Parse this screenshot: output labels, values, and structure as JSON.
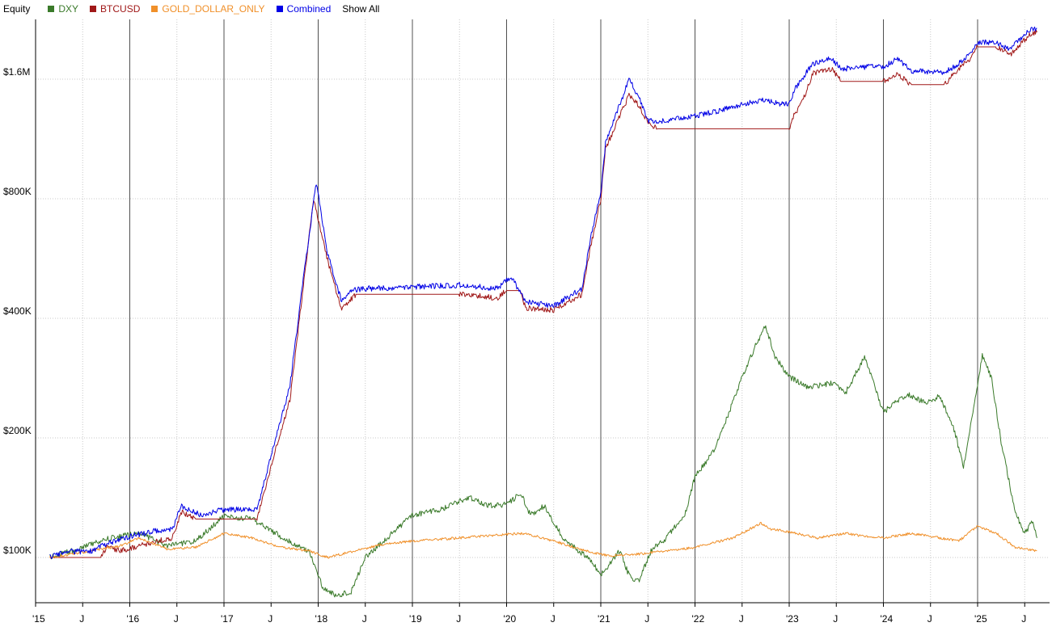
{
  "header": {
    "title": "Equity",
    "show_all_label": "Show All"
  },
  "legend": [
    {
      "name": "DXY",
      "color": "#3a7a2a"
    },
    {
      "name": "BTCUSD",
      "color": "#a01818"
    },
    {
      "name": "GOLD_DOLLAR_ONLY",
      "color": "#f0902a"
    },
    {
      "name": "Combined",
      "color": "#0000e6"
    }
  ],
  "chart_data": {
    "type": "line",
    "y_scale": "log",
    "ylim": [
      75000,
      2350000
    ],
    "xlim": [
      2015.1,
      2025.65
    ],
    "y_ticks": [
      {
        "value": 100000,
        "label": "$100K"
      },
      {
        "value": 200000,
        "label": "$200K"
      },
      {
        "value": 400000,
        "label": "$400K"
      },
      {
        "value": 800000,
        "label": "$800K"
      },
      {
        "value": 1600000,
        "label": "$1.6M"
      }
    ],
    "x_ticks": [
      {
        "value": 2015.0,
        "label": "'15",
        "major": true
      },
      {
        "value": 2015.5,
        "label": "J",
        "major": false
      },
      {
        "value": 2016.0,
        "label": "'16",
        "major": true
      },
      {
        "value": 2016.5,
        "label": "J",
        "major": false
      },
      {
        "value": 2017.0,
        "label": "'17",
        "major": true
      },
      {
        "value": 2017.5,
        "label": "J",
        "major": false
      },
      {
        "value": 2018.0,
        "label": "'18",
        "major": true
      },
      {
        "value": 2018.5,
        "label": "J",
        "major": false
      },
      {
        "value": 2019.0,
        "label": "'19",
        "major": true
      },
      {
        "value": 2019.5,
        "label": "J",
        "major": false
      },
      {
        "value": 2020.0,
        "label": "'20",
        "major": true
      },
      {
        "value": 2020.5,
        "label": "J",
        "major": false
      },
      {
        "value": 2021.0,
        "label": "'21",
        "major": true
      },
      {
        "value": 2021.5,
        "label": "J",
        "major": false
      },
      {
        "value": 2022.0,
        "label": "'22",
        "major": true
      },
      {
        "value": 2022.5,
        "label": "J",
        "major": false
      },
      {
        "value": 2023.0,
        "label": "'23",
        "major": true
      },
      {
        "value": 2023.5,
        "label": "J",
        "major": false
      },
      {
        "value": 2024.0,
        "label": "'24",
        "major": true
      },
      {
        "value": 2024.5,
        "label": "J",
        "major": false
      },
      {
        "value": 2025.0,
        "label": "'25",
        "major": true
      },
      {
        "value": 2025.5,
        "label": "J",
        "major": false
      }
    ],
    "series": [
      {
        "name": "DXY",
        "color": "#3a7a2a",
        "points": [
          [
            2015.15,
            100000
          ],
          [
            2015.45,
            105000
          ],
          [
            2015.8,
            112000
          ],
          [
            2016.1,
            115000
          ],
          [
            2016.4,
            107000
          ],
          [
            2016.7,
            110000
          ],
          [
            2017.0,
            127000
          ],
          [
            2017.3,
            125000
          ],
          [
            2017.6,
            113000
          ],
          [
            2017.9,
            104000
          ],
          [
            2018.05,
            84000
          ],
          [
            2018.2,
            80000
          ],
          [
            2018.35,
            82000
          ],
          [
            2018.5,
            100000
          ],
          [
            2018.75,
            113000
          ],
          [
            2019.0,
            128000
          ],
          [
            2019.3,
            132000
          ],
          [
            2019.6,
            142000
          ],
          [
            2019.8,
            135000
          ],
          [
            2020.0,
            136000
          ],
          [
            2020.15,
            145000
          ],
          [
            2020.25,
            128000
          ],
          [
            2020.4,
            135000
          ],
          [
            2020.6,
            112000
          ],
          [
            2020.9,
            98000
          ],
          [
            2021.0,
            90000
          ],
          [
            2021.2,
            104000
          ],
          [
            2021.3,
            90000
          ],
          [
            2021.4,
            87000
          ],
          [
            2021.55,
            106000
          ],
          [
            2021.7,
            112000
          ],
          [
            2021.9,
            130000
          ],
          [
            2022.0,
            160000
          ],
          [
            2022.2,
            185000
          ],
          [
            2022.35,
            228000
          ],
          [
            2022.5,
            285000
          ],
          [
            2022.65,
            345000
          ],
          [
            2022.75,
            383000
          ],
          [
            2022.85,
            320000
          ],
          [
            2023.0,
            285000
          ],
          [
            2023.2,
            268000
          ],
          [
            2023.45,
            275000
          ],
          [
            2023.6,
            260000
          ],
          [
            2023.8,
            320000
          ],
          [
            2024.0,
            232000
          ],
          [
            2024.25,
            258000
          ],
          [
            2024.45,
            245000
          ],
          [
            2024.6,
            255000
          ],
          [
            2024.75,
            210000
          ],
          [
            2024.85,
            170000
          ],
          [
            2025.0,
            270000
          ],
          [
            2025.05,
            325000
          ],
          [
            2025.15,
            280000
          ],
          [
            2025.25,
            195000
          ],
          [
            2025.4,
            130000
          ],
          [
            2025.5,
            115000
          ],
          [
            2025.58,
            123000
          ],
          [
            2025.63,
            112000
          ]
        ]
      },
      {
        "name": "BTCUSD",
        "color": "#a01818",
        "points": [
          [
            2015.15,
            100000
          ],
          [
            2015.7,
            100000
          ],
          [
            2015.75,
            106000
          ],
          [
            2015.9,
            104000
          ],
          [
            2016.3,
            110000
          ],
          [
            2016.45,
            112000
          ],
          [
            2016.55,
            130000
          ],
          [
            2016.7,
            125000
          ],
          [
            2017.0,
            125000
          ],
          [
            2017.35,
            125000
          ],
          [
            2017.5,
            170000
          ],
          [
            2017.7,
            250000
          ],
          [
            2017.85,
            500000
          ],
          [
            2017.95,
            800000
          ],
          [
            2018.1,
            560000
          ],
          [
            2018.25,
            420000
          ],
          [
            2018.4,
            460000
          ],
          [
            2019.0,
            460000
          ],
          [
            2019.5,
            460000
          ],
          [
            2019.9,
            450000
          ],
          [
            2020.0,
            470000
          ],
          [
            2020.15,
            470000
          ],
          [
            2020.2,
            425000
          ],
          [
            2020.5,
            420000
          ],
          [
            2020.8,
            460000
          ],
          [
            2020.9,
            620000
          ],
          [
            2021.0,
            800000
          ],
          [
            2021.05,
            1070000
          ],
          [
            2021.3,
            1460000
          ],
          [
            2021.4,
            1380000
          ],
          [
            2021.5,
            1250000
          ],
          [
            2021.6,
            1200000
          ],
          [
            2022.0,
            1200000
          ],
          [
            2022.9,
            1200000
          ],
          [
            2023.0,
            1200000
          ],
          [
            2023.05,
            1300000
          ],
          [
            2023.15,
            1420000
          ],
          [
            2023.25,
            1650000
          ],
          [
            2023.45,
            1700000
          ],
          [
            2023.55,
            1580000
          ],
          [
            2023.9,
            1580000
          ],
          [
            2024.0,
            1580000
          ],
          [
            2024.15,
            1650000
          ],
          [
            2024.3,
            1550000
          ],
          [
            2024.65,
            1550000
          ],
          [
            2024.8,
            1700000
          ],
          [
            2024.9,
            1780000
          ],
          [
            2025.0,
            1930000
          ],
          [
            2025.2,
            1930000
          ],
          [
            2025.35,
            1850000
          ],
          [
            2025.45,
            1960000
          ],
          [
            2025.55,
            2070000
          ],
          [
            2025.63,
            2100000
          ]
        ]
      },
      {
        "name": "GOLD_DOLLAR_ONLY",
        "color": "#f0902a",
        "points": [
          [
            2015.15,
            100000
          ],
          [
            2015.5,
            103000
          ],
          [
            2015.9,
            107000
          ],
          [
            2016.1,
            112000
          ],
          [
            2016.4,
            105000
          ],
          [
            2016.7,
            106000
          ],
          [
            2017.0,
            115000
          ],
          [
            2017.3,
            112000
          ],
          [
            2017.6,
            106000
          ],
          [
            2017.9,
            104000
          ],
          [
            2018.1,
            100000
          ],
          [
            2018.4,
            104000
          ],
          [
            2018.7,
            108000
          ],
          [
            2019.0,
            110000
          ],
          [
            2019.5,
            112000
          ],
          [
            2019.9,
            114000
          ],
          [
            2020.2,
            115000
          ],
          [
            2020.5,
            110000
          ],
          [
            2020.9,
            103000
          ],
          [
            2021.1,
            101000
          ],
          [
            2021.4,
            102000
          ],
          [
            2021.7,
            104000
          ],
          [
            2022.0,
            106000
          ],
          [
            2022.4,
            112000
          ],
          [
            2022.7,
            122000
          ],
          [
            2022.8,
            118000
          ],
          [
            2023.0,
            116000
          ],
          [
            2023.3,
            112000
          ],
          [
            2023.6,
            115000
          ],
          [
            2023.8,
            113000
          ],
          [
            2024.0,
            112000
          ],
          [
            2024.3,
            115000
          ],
          [
            2024.6,
            112000
          ],
          [
            2024.8,
            110000
          ],
          [
            2025.0,
            120000
          ],
          [
            2025.2,
            115000
          ],
          [
            2025.4,
            106000
          ],
          [
            2025.63,
            104000
          ]
        ]
      },
      {
        "name": "Combined",
        "color": "#0000e6",
        "points": [
          [
            2015.15,
            100000
          ],
          [
            2015.35,
            104000
          ],
          [
            2015.55,
            103000
          ],
          [
            2015.75,
            108000
          ],
          [
            2016.0,
            113000
          ],
          [
            2016.3,
            117000
          ],
          [
            2016.45,
            118000
          ],
          [
            2016.55,
            135000
          ],
          [
            2016.75,
            128000
          ],
          [
            2017.0,
            132000
          ],
          [
            2017.35,
            132000
          ],
          [
            2017.5,
            180000
          ],
          [
            2017.7,
            270000
          ],
          [
            2017.85,
            520000
          ],
          [
            2017.98,
            880000
          ],
          [
            2018.1,
            580000
          ],
          [
            2018.25,
            440000
          ],
          [
            2018.35,
            470000
          ],
          [
            2018.5,
            475000
          ],
          [
            2019.0,
            480000
          ],
          [
            2019.5,
            485000
          ],
          [
            2019.9,
            475000
          ],
          [
            2020.05,
            510000
          ],
          [
            2020.2,
            440000
          ],
          [
            2020.5,
            430000
          ],
          [
            2020.8,
            475000
          ],
          [
            2020.9,
            650000
          ],
          [
            2021.0,
            830000
          ],
          [
            2021.05,
            1100000
          ],
          [
            2021.3,
            1600000
          ],
          [
            2021.4,
            1450000
          ],
          [
            2021.5,
            1260000
          ],
          [
            2021.6,
            1250000
          ],
          [
            2022.0,
            1290000
          ],
          [
            2022.4,
            1360000
          ],
          [
            2022.7,
            1420000
          ],
          [
            2022.9,
            1390000
          ],
          [
            2023.0,
            1380000
          ],
          [
            2023.05,
            1500000
          ],
          [
            2023.25,
            1750000
          ],
          [
            2023.45,
            1800000
          ],
          [
            2023.55,
            1700000
          ],
          [
            2023.9,
            1720000
          ],
          [
            2024.0,
            1720000
          ],
          [
            2024.15,
            1800000
          ],
          [
            2024.3,
            1680000
          ],
          [
            2024.65,
            1660000
          ],
          [
            2024.8,
            1750000
          ],
          [
            2024.9,
            1830000
          ],
          [
            2025.0,
            1980000
          ],
          [
            2025.2,
            1980000
          ],
          [
            2025.35,
            1900000
          ],
          [
            2025.45,
            2020000
          ],
          [
            2025.55,
            2120000
          ],
          [
            2025.63,
            2150000
          ]
        ]
      }
    ]
  }
}
